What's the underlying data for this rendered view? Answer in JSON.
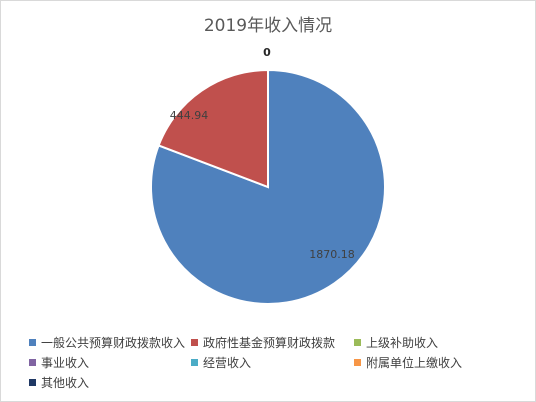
{
  "chart_data": {
    "type": "pie",
    "title": "2019年收入情况",
    "categories": [
      "一般公共预算财政拨款收入",
      "政府性基金预算财政拨款",
      "上级补助收入",
      "事业收入",
      "经营收入",
      "附属单位上缴收入",
      "其他收入"
    ],
    "values": [
      1870.18,
      444.94,
      0,
      0,
      0,
      0,
      0
    ],
    "data_labels": [
      "1870.18",
      "444.94",
      "0",
      "",
      "",
      "",
      ""
    ],
    "colors": [
      "#4f81bd",
      "#c0504d",
      "#9bbb59",
      "#8064a2",
      "#4bacc6",
      "#f79646",
      "#1f3864"
    ],
    "legend_position": "bottom"
  }
}
